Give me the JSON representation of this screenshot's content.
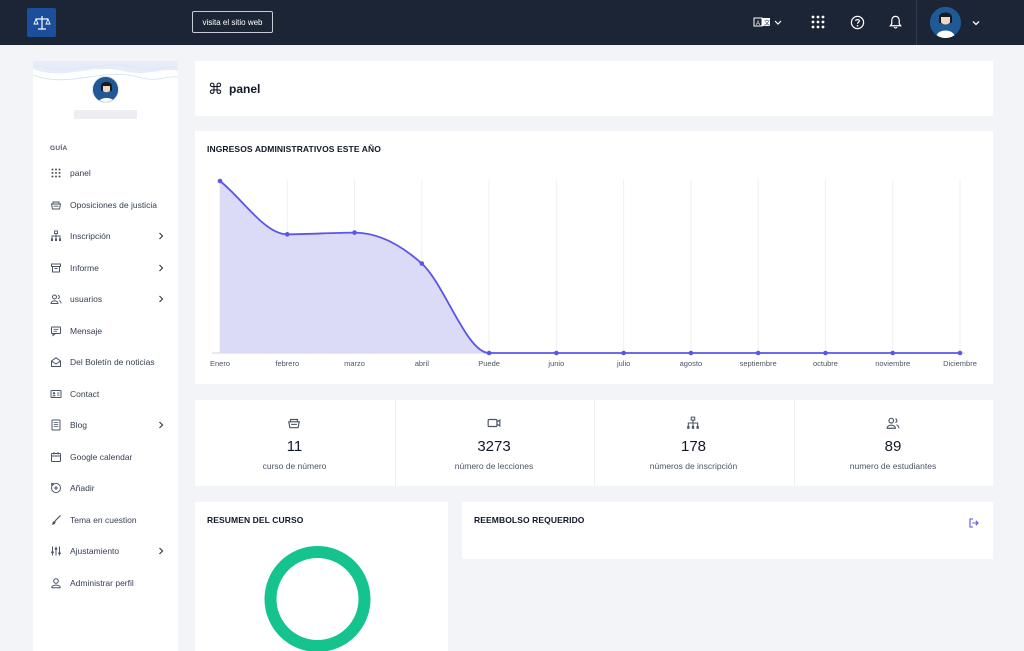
{
  "header": {
    "visit_label": "visita el sitio web"
  },
  "sidebar": {
    "section_label": "GUÍA",
    "items": [
      {
        "label": "panel",
        "icon": "grid-icon",
        "has_submenu": false
      },
      {
        "label": "Oposiciones de justicia",
        "icon": "basket-icon",
        "has_submenu": false
      },
      {
        "label": "Inscripción",
        "icon": "hierarchy-icon",
        "has_submenu": true
      },
      {
        "label": "Informe",
        "icon": "archive-icon",
        "has_submenu": true
      },
      {
        "label": "usuarios",
        "icon": "users-icon",
        "has_submenu": true
      },
      {
        "label": "Mensaje",
        "icon": "message-icon",
        "has_submenu": false
      },
      {
        "label": "Del Boletín de noticias",
        "icon": "mail-open-icon",
        "has_submenu": false
      },
      {
        "label": "Contact",
        "icon": "contact-card-icon",
        "has_submenu": false
      },
      {
        "label": "Blog",
        "icon": "document-icon",
        "has_submenu": true
      },
      {
        "label": "Google calendar",
        "icon": "calendar-icon",
        "has_submenu": false
      },
      {
        "label": "Añadir",
        "icon": "add-circle-icon",
        "has_submenu": false
      },
      {
        "label": "Tema en cuestion",
        "icon": "brush-icon",
        "has_submenu": false
      },
      {
        "label": "Ajustamiento",
        "icon": "sliders-icon",
        "has_submenu": true
      },
      {
        "label": "Administrar perfil",
        "icon": "user-icon",
        "has_submenu": false
      }
    ]
  },
  "page": {
    "title": "panel"
  },
  "chart": {
    "title": "INGRESOS ADMINISTRATIVOS ESTE AÑO"
  },
  "chart_data": {
    "type": "area",
    "title": "INGRESOS ADMINISTRATIVOS ESTE AÑO",
    "categories": [
      "Enero",
      "febrero",
      "marzo",
      "abril",
      "Puede",
      "junio",
      "julio",
      "agosto",
      "septiembre",
      "octubre",
      "noviembre",
      "Diciembre"
    ],
    "values": [
      100,
      69,
      70,
      52,
      0,
      0,
      0,
      0,
      0,
      0,
      0,
      0
    ],
    "ylim": [
      0,
      100
    ],
    "grid": "vertical",
    "line_color": "#5b55e8",
    "fill_color": "#d9d8f7"
  },
  "stats": [
    {
      "value": "11",
      "label": "curso de número",
      "icon": "basket-icon"
    },
    {
      "value": "3273",
      "label": "número de lecciones",
      "icon": "video-icon"
    },
    {
      "value": "178",
      "label": "números de inscripción",
      "icon": "hierarchy-icon"
    },
    {
      "value": "89",
      "label": "numero de estudiantes",
      "icon": "users-icon"
    }
  ],
  "summary": {
    "title": "RESUMEN DEL CURSO",
    "ring_color": "#14c38e"
  },
  "refund": {
    "title": "REEMBOLSO REQUERIDO"
  }
}
